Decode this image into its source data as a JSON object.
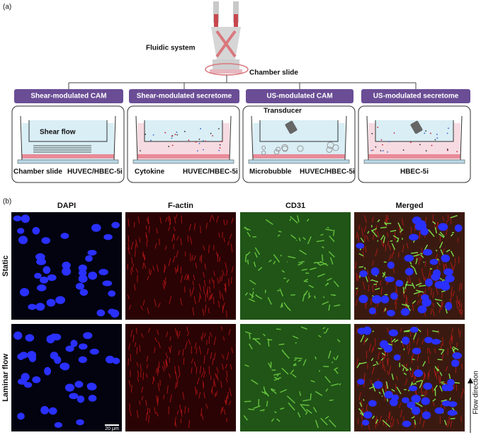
{
  "panel_a": {
    "label": "(a)",
    "fluidic_system": "Fluidic system",
    "chamber_slide": "Chamber slide",
    "conditions": [
      {
        "title": "Shear-modulated CAM",
        "labels": [
          "Shear flow",
          "Chamber slide",
          "HUVEC/HBEC-5i"
        ]
      },
      {
        "title": "Shear-modulated secretome",
        "labels": [
          "Cytokine",
          "HUVEC/HBEC-5i"
        ]
      },
      {
        "title": "US-modulated CAM",
        "labels": [
          "Transducer",
          "Microbubble",
          "HUVEC/HBEC-5i"
        ]
      },
      {
        "title": "US-modulated secretome",
        "labels": [
          "HBEC-5i"
        ]
      }
    ]
  },
  "panel_b": {
    "label": "(b)",
    "columns": [
      "DAPI",
      "F-actin",
      "CD31",
      "Merged"
    ],
    "rows": [
      "Static",
      "Laminar flow"
    ],
    "scale_bar": "20 μm",
    "flow_direction": "Flow direction"
  }
}
